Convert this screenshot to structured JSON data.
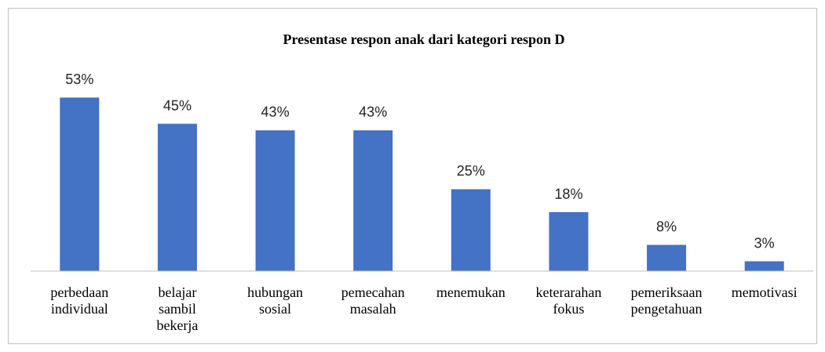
{
  "chart_data": {
    "type": "bar",
    "title": "Presentase respon anak dari kategori respon D",
    "categories": [
      "perbedaan individual",
      "belajar sambil bekerja",
      "hubungan sosial",
      "pemecahan masalah",
      "menemukan",
      "keterarahan fokus",
      "pemeriksaan pengetahuan",
      "memotivasi"
    ],
    "values": [
      53,
      45,
      43,
      43,
      25,
      18,
      8,
      3
    ],
    "value_labels": [
      "53%",
      "45%",
      "43%",
      "43%",
      "25%",
      "18%",
      "8%",
      "3%"
    ],
    "color": "#4472c4",
    "ylim": [
      0,
      60
    ]
  }
}
